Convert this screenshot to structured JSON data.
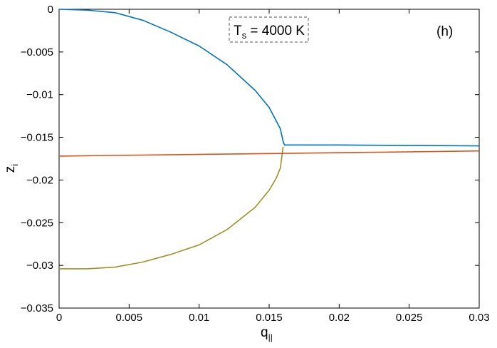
{
  "chart_data": {
    "type": "line",
    "title": "",
    "annotation_box": {
      "symbol": "T",
      "subscript": "s",
      "rest": " = 4000 K"
    },
    "panel_label": "(h)",
    "xlabel": {
      "base": "q",
      "subscript": "||"
    },
    "ylabel": {
      "base": "z",
      "subscript": "i"
    },
    "xlim": [
      0,
      0.03
    ],
    "ylim": [
      -0.035,
      0
    ],
    "xticks": [
      0,
      0.005,
      0.01,
      0.015,
      0.02,
      0.025,
      0.03
    ],
    "xtick_labels": [
      "0",
      "0.005",
      "0.01",
      "0.015",
      "0.02",
      "0.025",
      "0.03"
    ],
    "yticks": [
      0,
      -0.005,
      -0.01,
      -0.015,
      -0.02,
      -0.025,
      -0.03,
      -0.035
    ],
    "ytick_labels": [
      "0",
      "−0.005",
      "−0.01",
      "−0.015",
      "−0.02",
      "−0.025",
      "−0.03",
      "−0.035"
    ],
    "grid": false,
    "legend": "none",
    "series": [
      {
        "color": "#0072BD",
        "x": [
          0,
          0.002,
          0.004,
          0.006,
          0.008,
          0.01,
          0.012,
          0.014,
          0.015,
          0.0158,
          0.016,
          0.0161,
          0.018,
          0.02,
          0.025,
          0.03
        ],
        "y": [
          0,
          -0.0001,
          -0.0004,
          -0.0013,
          -0.0027,
          -0.0043,
          -0.0065,
          -0.0095,
          -0.0115,
          -0.014,
          -0.0155,
          -0.0159,
          -0.0159,
          -0.0159,
          -0.01595,
          -0.016
        ]
      },
      {
        "color": "#9C9128",
        "x": [
          0,
          0.002,
          0.004,
          0.006,
          0.008,
          0.01,
          0.012,
          0.014,
          0.015,
          0.0155,
          0.0158,
          0.016
        ],
        "y": [
          -0.0304,
          -0.0304,
          -0.0302,
          -0.0296,
          -0.0287,
          -0.0276,
          -0.0258,
          -0.0232,
          -0.0212,
          -0.0198,
          -0.0186,
          -0.0161
        ]
      },
      {
        "color": "#D95319",
        "x": [
          0,
          0.03
        ],
        "y": [
          -0.0172,
          -0.0166
        ]
      }
    ]
  }
}
